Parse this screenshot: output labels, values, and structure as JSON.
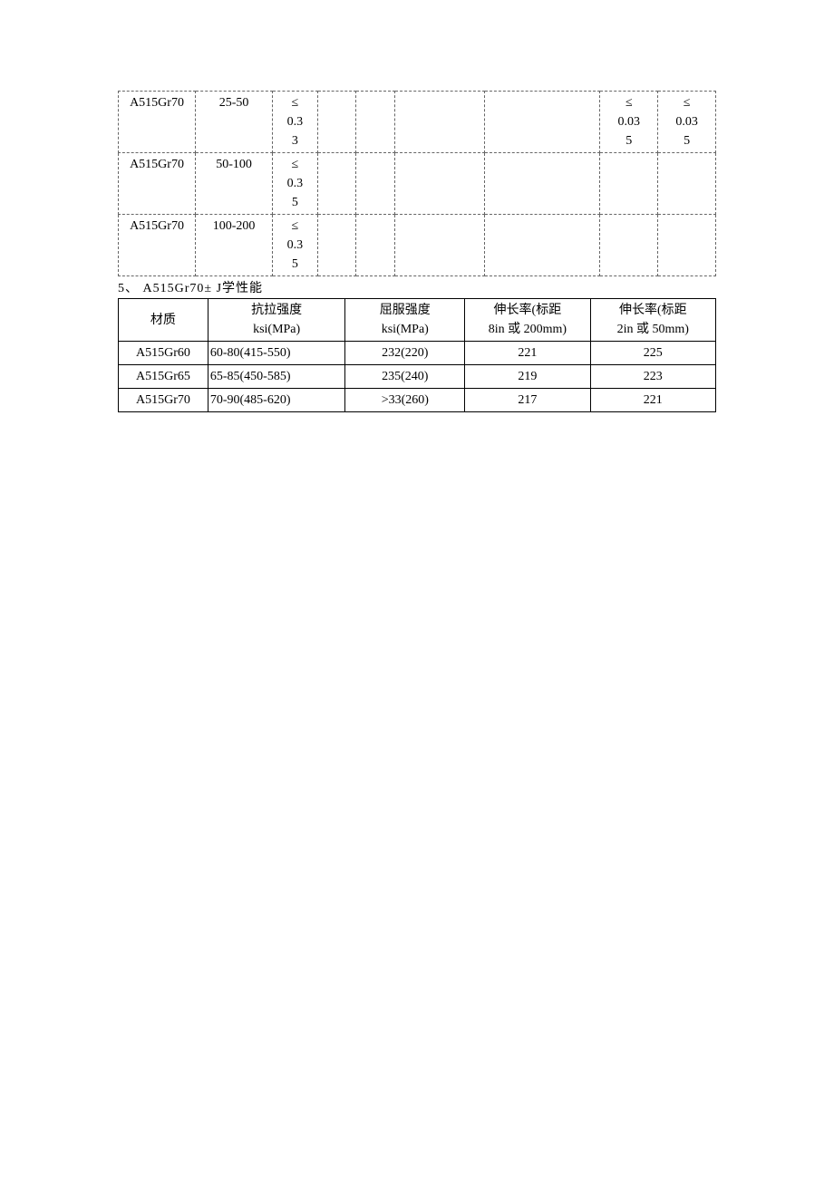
{
  "table1": {
    "col_widths_pct": [
      12,
      12,
      7,
      6,
      6,
      14,
      18,
      9,
      9
    ],
    "rows": [
      [
        "A515Gr70",
        "25-50",
        "≤\n0.3\n3",
        "",
        "",
        "",
        "",
        "≤\n0.03\n5",
        "≤\n0.03\n5"
      ],
      [
        "A515Gr70",
        "50-100",
        "≤\n0.3\n5",
        "",
        "",
        "",
        "",
        "",
        ""
      ],
      [
        "A515Gr70",
        "100-200",
        "≤\n0.3\n5",
        "",
        "",
        "",
        "",
        "",
        ""
      ]
    ]
  },
  "section_title": "5、 A515Gr70± J学性能",
  "table2": {
    "col_widths_pct": [
      15,
      23,
      20,
      21,
      21
    ],
    "header": [
      "材质",
      "抗拉强度\nksi(MPa)",
      "屈服强度\nksi(MPa)",
      "伸长率(标距\n8in 或 200mm)",
      "伸长率(标距\n2in 或 50mm)"
    ],
    "rows": [
      [
        "A515Gr60",
        "60-80(415-550)",
        "232(220)",
        "221",
        "225"
      ],
      [
        "A515Gr65",
        "65-85(450-585)",
        "235(240)",
        "219",
        "223"
      ],
      [
        "A515Gr70",
        "70-90(485-620)",
        ">33(260)",
        "217",
        "221"
      ]
    ]
  },
  "colors": {
    "text": "#000000",
    "background": "#ffffff",
    "border_t1": "#666666",
    "border_t2": "#000000"
  },
  "fonts": {
    "family": "SimSun",
    "size_pt": 10.5
  }
}
